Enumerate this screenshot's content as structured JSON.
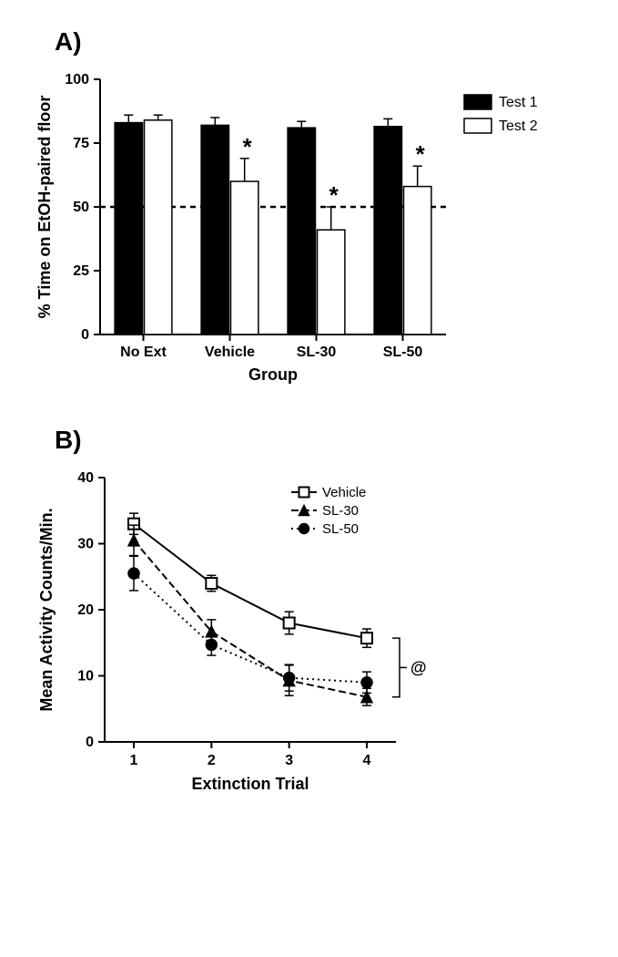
{
  "panelA": {
    "label": "A)",
    "type": "bar",
    "ylabel": "% Time on EtOH-paired floor",
    "xlabel": "Group",
    "ylim": [
      0,
      100
    ],
    "ytick_step": 25,
    "reference_line": 50,
    "categories": [
      "No Ext",
      "Vehicle",
      "SL-30",
      "SL-50"
    ],
    "series": [
      {
        "name": "Test 1",
        "color": "#000000"
      },
      {
        "name": "Test 2",
        "color": "#ffffff"
      }
    ],
    "data": {
      "Test 1": {
        "values": [
          83,
          82,
          81,
          81.5
        ],
        "err": [
          3,
          3,
          2.5,
          3
        ]
      },
      "Test 2": {
        "values": [
          84,
          60,
          41,
          58
        ],
        "err": [
          2,
          9,
          9,
          8
        ]
      }
    },
    "sig_marks": [
      {
        "group": "Vehicle",
        "series": "Test 2",
        "symbol": "*"
      },
      {
        "group": "SL-30",
        "series": "Test 2",
        "symbol": "*"
      },
      {
        "group": "SL-50",
        "series": "Test 2",
        "symbol": "*"
      }
    ],
    "label_fontsize": 18,
    "tick_fontsize": 16,
    "sig_fontsize": 26,
    "bar_border_color": "#000000",
    "axis_color": "#000000",
    "refline_dash": "6,5"
  },
  "panelB": {
    "label": "B)",
    "type": "line",
    "ylabel": "Mean Activity Counts/Min.",
    "xlabel": "Extinction Trial",
    "ylim": [
      0,
      40
    ],
    "ytick_step": 10,
    "xvalues": [
      1,
      2,
      3,
      4
    ],
    "series": [
      {
        "name": "Vehicle",
        "marker": "square-open",
        "color": "#000000",
        "fill": "#ffffff",
        "dash": "none",
        "y": [
          33,
          24,
          18,
          15.7
        ],
        "err": [
          1.6,
          1.2,
          1.7,
          1.4
        ]
      },
      {
        "name": "SL-30",
        "marker": "triangle-filled",
        "color": "#000000",
        "fill": "#000000",
        "dash": "8,4",
        "y": [
          30.5,
          16.7,
          9.3,
          6.8
        ],
        "err": [
          2.3,
          1.8,
          2.3,
          1.3
        ]
      },
      {
        "name": "SL-50",
        "marker": "circle-filled",
        "color": "#000000",
        "fill": "#000000",
        "dash": "2,4",
        "y": [
          25.5,
          14.7,
          9.7,
          9.0
        ],
        "err": [
          2.6,
          1.6,
          2.0,
          1.6
        ]
      }
    ],
    "label_fontsize": 18,
    "tick_fontsize": 16,
    "axis_color": "#000000",
    "bracket": {
      "symbol": "@",
      "fontsize": 18
    }
  },
  "background_color": "#ffffff"
}
